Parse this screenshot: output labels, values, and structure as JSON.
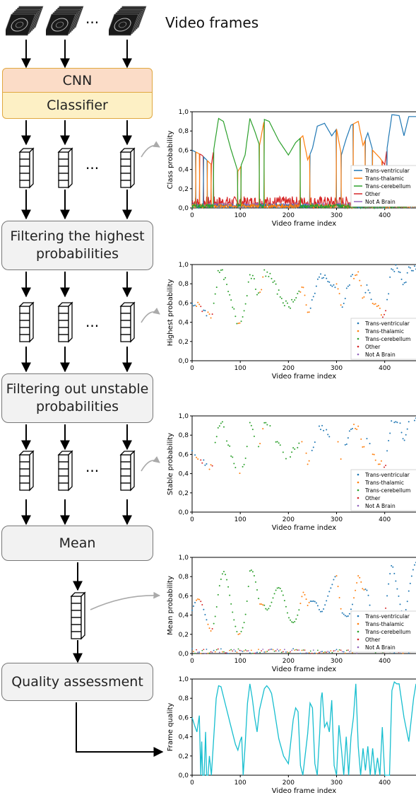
{
  "header": {
    "video_frames_label": "Video frames"
  },
  "flow": {
    "cnn": "CNN",
    "classifier": "Classifier",
    "filter_highest": [
      "Filtering the highest",
      "probabilities"
    ],
    "filter_unstable": [
      "Filtering out unstable",
      "probabilities"
    ],
    "mean": "Mean",
    "quality": "Quality assessment",
    "ellipsis": "···"
  },
  "colors": {
    "trans_ventricular": "#1f77b4",
    "trans_thalamic": "#ff7f0e",
    "trans_cerebellum": "#2ca02c",
    "other": "#d62728",
    "not_a_brain": "#9467bd",
    "frame_quality": "#17becf"
  },
  "chart_data": [
    {
      "type": "line",
      "xlabel": "Video frame index",
      "ylabel": "Class probability",
      "xlim": [
        0,
        465
      ],
      "ylim": [
        0,
        1.0
      ],
      "xticks": [
        0,
        100,
        200,
        300,
        400
      ],
      "yticks": [
        0.0,
        0.2,
        0.4,
        0.6,
        0.8,
        1.0
      ],
      "legend": [
        "Trans-ventricular",
        "Trans-thalamic",
        "Trans-cerebellum",
        "Other",
        "Not A Brain"
      ],
      "legend_position": "lower-right"
    },
    {
      "type": "scatter",
      "xlabel": "Video frame index",
      "ylabel": "Highest probability",
      "xlim": [
        0,
        465
      ],
      "ylim": [
        0,
        1.0
      ],
      "xticks": [
        0,
        100,
        200,
        300,
        400
      ],
      "yticks": [
        0.0,
        0.2,
        0.4,
        0.6,
        0.8,
        1.0
      ],
      "legend": [
        "Trans-ventricular",
        "Trans-thalamic",
        "Trans-cerebellum",
        "Other",
        "Not A Brain"
      ],
      "legend_position": "lower-right"
    },
    {
      "type": "scatter",
      "xlabel": "Video frame index",
      "ylabel": "Stable probability",
      "xlim": [
        0,
        465
      ],
      "ylim": [
        0,
        1.0
      ],
      "xticks": [
        0,
        100,
        200,
        300,
        400
      ],
      "yticks": [
        0.0,
        0.2,
        0.4,
        0.6,
        0.8,
        1.0
      ],
      "legend": [
        "Trans-ventricular",
        "Trans-thalamic",
        "Trans-cerebellum",
        "Other",
        "Not A Brain"
      ],
      "legend_position": "lower-right"
    },
    {
      "type": "scatter",
      "xlabel": "Video frame index",
      "ylabel": "Mean probability",
      "xlim": [
        0,
        465
      ],
      "ylim": [
        0,
        1.0
      ],
      "xticks": [
        0,
        100,
        200,
        300,
        400
      ],
      "yticks": [
        0.0,
        0.2,
        0.4,
        0.6,
        0.8,
        1.0
      ],
      "legend": [
        "Trans-ventricular",
        "Trans-thalamic",
        "Trans-cerebellum",
        "Other",
        "Not A Brain"
      ],
      "legend_position": "lower-right"
    },
    {
      "type": "line",
      "xlabel": "Video frame index",
      "ylabel": "Frame quality",
      "xlim": [
        0,
        465
      ],
      "ylim": [
        0,
        1.0
      ],
      "xticks": [
        0,
        100,
        200,
        300,
        400
      ],
      "yticks": [
        0.0,
        0.2,
        0.4,
        0.6,
        0.8,
        1.0
      ],
      "series": [
        {
          "x": [
            0,
            5,
            10,
            15,
            18,
            20,
            22,
            25,
            28,
            30,
            33,
            36,
            40,
            45,
            50,
            55,
            60,
            70,
            80,
            90,
            95,
            100,
            103,
            106,
            110,
            115,
            120,
            125,
            130,
            135,
            140,
            150,
            155,
            160,
            165,
            170,
            180,
            190,
            200,
            210,
            215,
            220,
            225,
            230,
            240,
            245,
            250,
            255,
            260,
            265,
            268,
            270,
            275,
            280,
            285,
            290,
            295,
            300,
            305,
            310,
            315,
            320,
            325,
            330,
            335,
            340,
            345,
            350,
            355,
            360,
            365,
            370,
            375,
            380,
            385,
            390,
            395,
            400,
            405,
            410,
            415,
            420,
            425,
            430,
            440,
            450,
            460,
            465
          ],
          "y": [
            0.6,
            0.52,
            0.45,
            0.62,
            0.0,
            0.35,
            0.0,
            0.0,
            0.45,
            0.0,
            0.0,
            0.2,
            0.0,
            0.4,
            0.8,
            0.93,
            0.92,
            0.72,
            0.52,
            0.32,
            0.26,
            0.36,
            0.4,
            0.0,
            0.3,
            0.75,
            0.95,
            0.8,
            0.6,
            0.45,
            0.68,
            0.9,
            0.93,
            0.9,
            0.85,
            0.7,
            0.38,
            0.2,
            0.12,
            0.58,
            0.7,
            0.66,
            0.1,
            0.0,
            0.43,
            0.75,
            0.7,
            0.12,
            0.0,
            0.45,
            0.8,
            0.86,
            0.5,
            0.55,
            0.45,
            0.78,
            0.1,
            0.0,
            0.52,
            0.28,
            0.0,
            0.4,
            0.0,
            0.4,
            0.6,
            0.95,
            0.3,
            0.0,
            0.28,
            0.05,
            0.3,
            0.0,
            0.28,
            0.0,
            0.18,
            0.0,
            0.5,
            0.0,
            0.0,
            0.0,
            0.88,
            0.97,
            0.95,
            0.95,
            0.6,
            0.35,
            0.8,
            0.95
          ]
        }
      ]
    }
  ]
}
